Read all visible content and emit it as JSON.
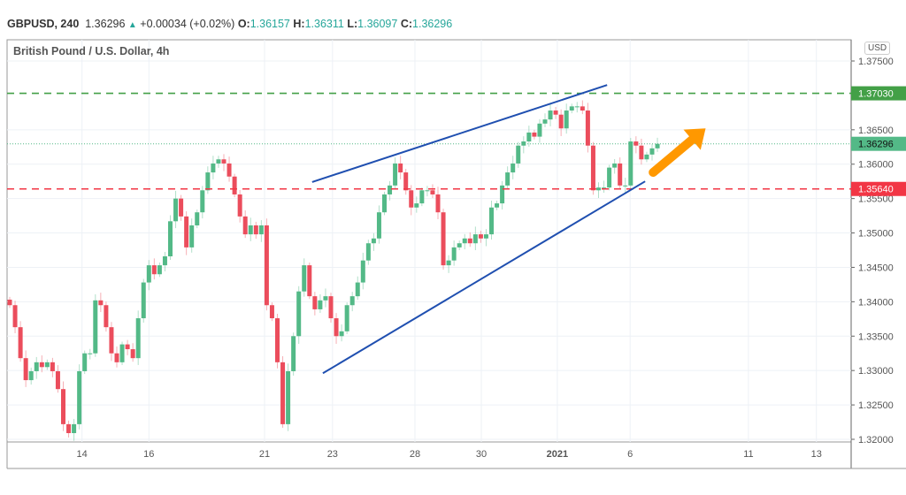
{
  "header": {
    "symbol": "GBPUSD, 240",
    "last": "1.36296",
    "change": "+0.00034 (+0.02%)",
    "o_label": "O:",
    "o": "1.36157",
    "h_label": "H:",
    "h": "1.36311",
    "l_label": "L:",
    "l": "1.36097",
    "c_label": "C:",
    "c": "1.36296",
    "subtitle": "British Pound / U.S. Dollar, 4h",
    "currency": "USD"
  },
  "colors": {
    "up": "#53b987",
    "down": "#eb4d5c",
    "trend": "#1f4fb0",
    "arrow": "#ff9800",
    "resistance": "#43a047",
    "support": "#f23645"
  },
  "chart_data": {
    "type": "candlestick",
    "title": "GBPUSD, 240",
    "ylim": [
      1.32,
      1.375
    ],
    "y_ticks": [
      "1.37500",
      "1.36500",
      "1.36000",
      "1.35500",
      "1.35000",
      "1.34500",
      "1.34000",
      "1.33500",
      "1.33000",
      "1.32500",
      "1.32000"
    ],
    "x_ticks": [
      {
        "label": "14",
        "index": 13.5
      },
      {
        "label": "16",
        "index": 26
      },
      {
        "label": "21",
        "index": 47.6
      },
      {
        "label": "23",
        "index": 60.3
      },
      {
        "label": "28",
        "index": 75.7
      },
      {
        "label": "30",
        "index": 88.1
      },
      {
        "label": "2021",
        "index": 102.3
      },
      {
        "label": "6",
        "index": 115.9
      },
      {
        "label": "11",
        "index": 138
      },
      {
        "label": "13",
        "index": 150.7
      }
    ],
    "closes": [
      1.3395,
      1.3363,
      1.3318,
      1.3286,
      1.3299,
      1.3312,
      1.3305,
      1.3312,
      1.3299,
      1.3273,
      1.3222,
      1.3209,
      1.3222,
      1.3299,
      1.3325,
      1.3325,
      1.3402,
      1.3395,
      1.3363,
      1.3325,
      1.3312,
      1.3338,
      1.3331,
      1.3318,
      1.3376,
      1.3428,
      1.3453,
      1.344,
      1.3453,
      1.3466,
      1.3517,
      1.355,
      1.3524,
      1.3479,
      1.3511,
      1.353,
      1.3562,
      1.3588,
      1.3601,
      1.3607,
      1.3601,
      1.3582,
      1.3556,
      1.3524,
      1.3498,
      1.3511,
      1.3498,
      1.3511,
      1.3395,
      1.3376,
      1.3312,
      1.3222,
      1.3299,
      1.335,
      1.3415,
      1.3453,
      1.3408,
      1.3389,
      1.3402,
      1.3408,
      1.3376,
      1.335,
      1.3357,
      1.3395,
      1.3408,
      1.3428,
      1.346,
      1.3485,
      1.3492,
      1.353,
      1.3556,
      1.3569,
      1.3601,
      1.3588,
      1.3562,
      1.3537,
      1.3543,
      1.3562,
      1.3562,
      1.3556,
      1.353,
      1.3453,
      1.346,
      1.3479,
      1.3485,
      1.3492,
      1.3485,
      1.3498,
      1.3492,
      1.3498,
      1.3537,
      1.3543,
      1.3569,
      1.3588,
      1.3601,
      1.3627,
      1.3633,
      1.3646,
      1.364,
      1.3659,
      1.3665,
      1.3678,
      1.3672,
      1.3652,
      1.3678,
      1.3684,
      1.3684,
      1.3678,
      1.3627,
      1.3562,
      1.3566,
      1.3566,
      1.3595,
      1.3601,
      1.3569,
      1.3569,
      1.3633,
      1.3627,
      1.3607,
      1.3614,
      1.3623,
      1.36296
    ],
    "hlines": [
      {
        "price": 1.3703,
        "label": "1.37030",
        "kind": "resistance"
      },
      {
        "price": 1.3564,
        "label": "1.35640",
        "kind": "support"
      }
    ],
    "last_price": {
      "price": 1.36296,
      "label": "1.36296"
    },
    "trendlines": [
      {
        "from": [
          56.5,
          1.3574
        ],
        "to": [
          111.6,
          1.3715
        ]
      },
      {
        "from": [
          58.5,
          1.3296
        ],
        "to": [
          118.7,
          1.3575
        ]
      }
    ],
    "arrow": {
      "from": [
        120.2,
        1.3588
      ],
      "to": [
        130,
        1.3652
      ]
    }
  }
}
